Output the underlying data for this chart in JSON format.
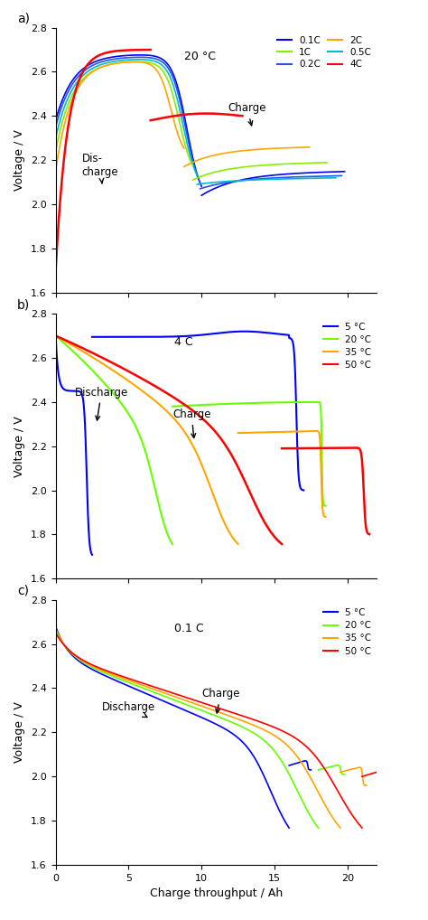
{
  "panel_a": {
    "title": "20 °C",
    "label": "a)",
    "colors_a": [
      "#0000FF",
      "#2255EE",
      "#00BBCC",
      "#88EE00",
      "#FFA500",
      "#FF0000"
    ],
    "labels_a": [
      "0.1C",
      "0.2C",
      "0.5C",
      "1C",
      "2C",
      "4C"
    ],
    "params_a": [
      [
        10.0,
        2.68,
        2.38,
        1.7,
        9.8,
        2.04,
        2.14,
        1.2
      ],
      [
        9.9,
        2.67,
        2.35,
        1.7,
        9.7,
        2.07,
        2.12,
        1.2
      ],
      [
        9.7,
        2.66,
        2.3,
        1.7,
        9.5,
        2.09,
        2.11,
        1.2
      ],
      [
        9.4,
        2.65,
        2.24,
        1.7,
        9.2,
        2.11,
        2.18,
        1.2
      ],
      [
        8.8,
        2.65,
        2.15,
        1.7,
        8.6,
        2.17,
        2.25,
        1.2
      ],
      [
        6.5,
        2.7,
        1.7,
        1.7,
        6.3,
        2.38,
        2.4,
        1.8
      ]
    ]
  },
  "panel_b": {
    "title": "4 C",
    "label": "b)",
    "colors_b": [
      "#0000FF",
      "#66FF00",
      "#FFA500",
      "#FF0000"
    ],
    "labels_b": [
      "5 °C",
      "20 °C",
      "35 °C",
      "50 °C"
    ],
    "params_b": [
      [
        2.5,
        2.7,
        1.7,
        17.0,
        2.57,
        2.0,
        1.5
      ],
      [
        8.0,
        2.7,
        1.7,
        18.5,
        2.38,
        1.93,
        1.5
      ],
      [
        12.5,
        2.7,
        1.7,
        18.5,
        2.26,
        1.88,
        1.5
      ],
      [
        15.5,
        2.7,
        1.7,
        21.5,
        2.19,
        1.8,
        1.8
      ]
    ]
  },
  "panel_c": {
    "title": "0.1 C",
    "label": "c)",
    "colors_c": [
      "#0000FF",
      "#66FF00",
      "#FFA500",
      "#FF0000"
    ],
    "labels_c": [
      "5 °C",
      "20 °C",
      "35 °C",
      "50 °C"
    ],
    "params_c": [
      [
        16.0,
        2.68,
        1.7,
        1.5,
        2.05,
        2.05
      ],
      [
        18.0,
        2.67,
        1.7,
        1.8,
        2.03,
        2.03
      ],
      [
        19.5,
        2.66,
        1.7,
        1.8,
        2.02,
        1.98
      ],
      [
        21.0,
        2.65,
        1.7,
        1.5,
        2.0,
        1.98
      ]
    ]
  },
  "ylim": [
    1.6,
    2.8
  ],
  "xlim": [
    0,
    22
  ],
  "yticks": [
    1.6,
    1.8,
    2.0,
    2.2,
    2.4,
    2.6,
    2.8
  ],
  "xticks": [
    0,
    5,
    10,
    15,
    20
  ],
  "ylabel": "Voltage / V",
  "xlabel": "Charge throughput / Ah"
}
